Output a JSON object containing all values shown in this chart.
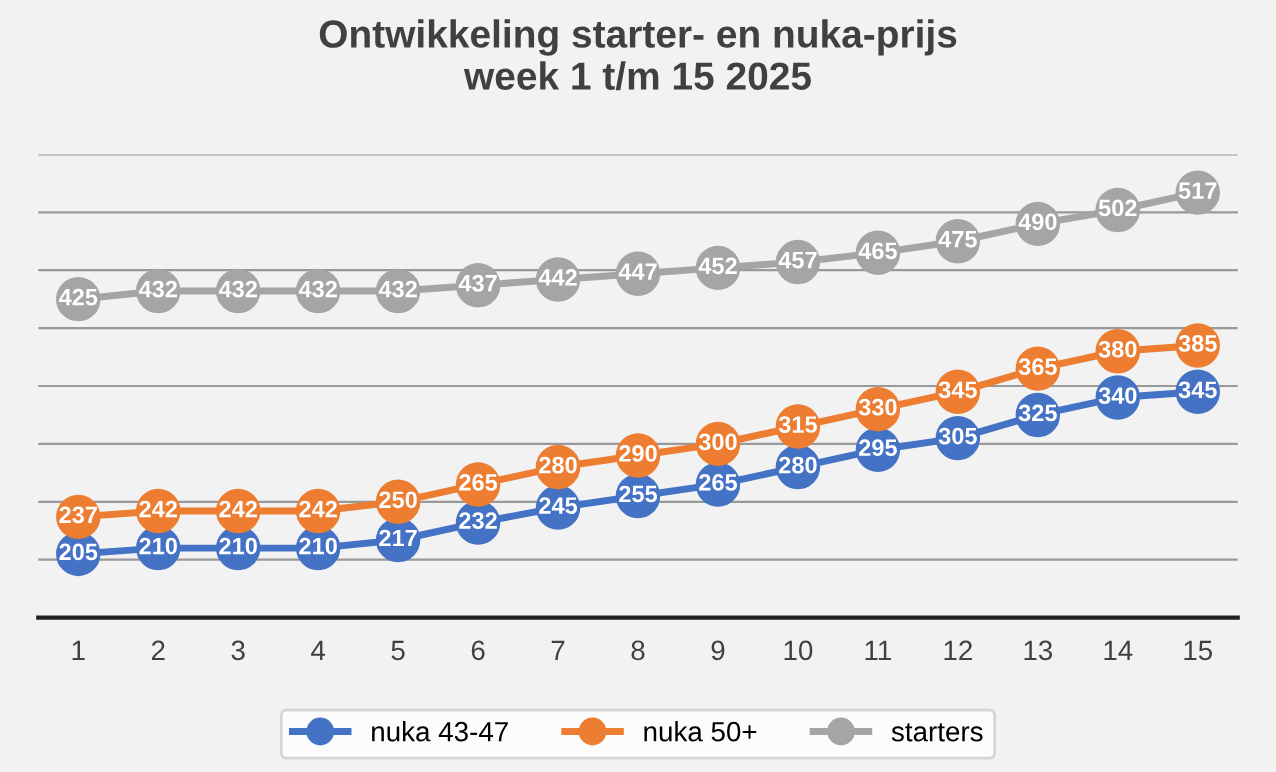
{
  "chart_data": {
    "type": "line",
    "title": "Ontwikkeling starter- en nuka-prijs\nweek 1 t/m 15 2025",
    "categories": [
      "1",
      "2",
      "3",
      "4",
      "5",
      "6",
      "7",
      "8",
      "9",
      "10",
      "11",
      "12",
      "13",
      "14",
      "15"
    ],
    "series": [
      {
        "name": "nuka 43-47",
        "color": "#4472c4",
        "values": [
          205,
          210,
          210,
          210,
          217,
          232,
          245,
          255,
          265,
          280,
          295,
          305,
          325,
          340,
          345
        ]
      },
      {
        "name": "nuka 50+",
        "color": "#ed7d31",
        "values": [
          237,
          242,
          242,
          242,
          250,
          265,
          280,
          290,
          300,
          315,
          330,
          345,
          365,
          380,
          385
        ]
      },
      {
        "name": "starters",
        "color": "#a5a5a5",
        "values": [
          425,
          432,
          432,
          432,
          432,
          437,
          442,
          447,
          452,
          457,
          465,
          475,
          490,
          502,
          517
        ]
      }
    ],
    "ylim": [
      150,
      550
    ],
    "yticks": [
      {
        "value": 150,
        "label": null
      },
      {
        "value": 200,
        "label": null
      },
      {
        "value": 250,
        "label": null
      },
      {
        "value": 300,
        "label": null
      },
      {
        "value": 350,
        "label": null
      },
      {
        "value": 400,
        "label": null
      },
      {
        "value": 450,
        "label": null
      },
      {
        "value": 500,
        "label": null
      },
      {
        "value": 550,
        "label": null
      }
    ],
    "tick_labels": "x",
    "grid": "y",
    "legend": "bottom",
    "marker": "circle",
    "line_style": "solid",
    "data_labels": true
  }
}
